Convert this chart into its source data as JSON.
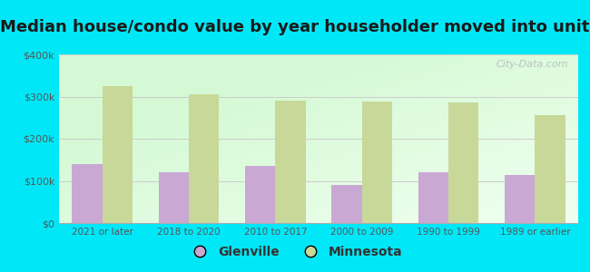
{
  "title": "Median house/condo value by year householder moved into unit",
  "categories": [
    "2021 or later",
    "2018 to 2020",
    "2010 to 2017",
    "2000 to 2009",
    "1990 to 1999",
    "1989 or earlier"
  ],
  "glenville_values": [
    140000,
    120000,
    135000,
    90000,
    120000,
    115000
  ],
  "minnesota_values": [
    325000,
    305000,
    290000,
    288000,
    285000,
    255000
  ],
  "glenville_color": "#c9a8d4",
  "minnesota_color": "#c8d898",
  "background_color": "#00e8f8",
  "ylim": [
    0,
    400000
  ],
  "yticks": [
    0,
    100000,
    200000,
    300000,
    400000
  ],
  "ytick_labels": [
    "$0",
    "$100k",
    "$200k",
    "$300k",
    "$400k"
  ],
  "title_fontsize": 13,
  "watermark_text": "City-Data.com",
  "legend_glenville": "Glenville",
  "legend_minnesota": "Minnesota",
  "bar_width": 0.35,
  "grid_color": "#cccccc",
  "tick_color": "#555555",
  "title_color": "#1a1a1a"
}
